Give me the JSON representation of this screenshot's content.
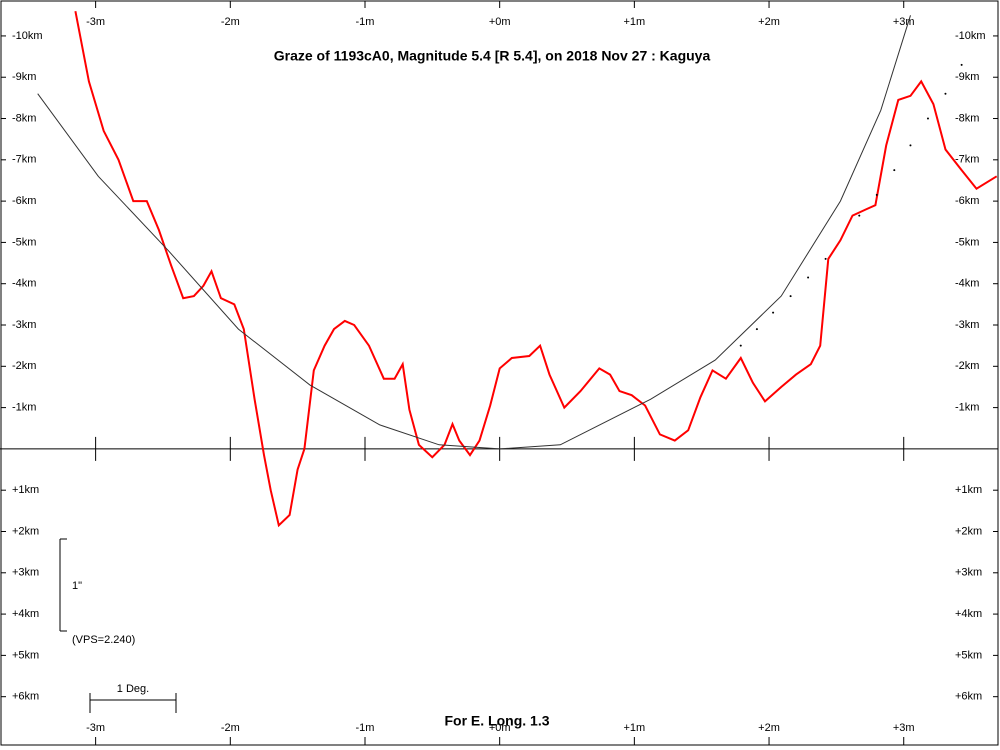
{
  "chart_data": {
    "type": "line",
    "title": "Graze of  1193cA0,  Magnitude 5.4 [R 5.4],  on 2018 Nov 27  :  Kaguya",
    "footer": "For E. Long. 1.3",
    "annotations": [
      "1\"",
      "(VPS=2.240)",
      "1 Deg."
    ],
    "xlim": [
      -3.71,
      3.7
    ],
    "ylim": [
      -10.87,
      7.17
    ],
    "xticks": [
      {
        "value": -3,
        "label": "-3m"
      },
      {
        "value": -2,
        "label": "-2m"
      },
      {
        "value": -1,
        "label": "-1m"
      },
      {
        "value": 0,
        "label": "+0m"
      },
      {
        "value": 1,
        "label": "+1m"
      },
      {
        "value": 2,
        "label": "+2m"
      },
      {
        "value": 3,
        "label": "+3m"
      }
    ],
    "yticks": [
      {
        "value": -10,
        "label": "-10km"
      },
      {
        "value": -9,
        "label": "-9km"
      },
      {
        "value": -8,
        "label": "-8km"
      },
      {
        "value": -7,
        "label": "-7km"
      },
      {
        "value": -6,
        "label": "-6km"
      },
      {
        "value": -5,
        "label": "-5km"
      },
      {
        "value": -4,
        "label": "-4km"
      },
      {
        "value": -3,
        "label": "-3km"
      },
      {
        "value": -2,
        "label": "-2km"
      },
      {
        "value": -1,
        "label": "-1km"
      },
      {
        "value": 1,
        "label": "+1km"
      },
      {
        "value": 2,
        "label": "+2km"
      },
      {
        "value": 3,
        "label": "+3km"
      },
      {
        "value": 4,
        "label": "+4km"
      },
      {
        "value": 5,
        "label": "+5km"
      },
      {
        "value": 6,
        "label": "+6km"
      }
    ],
    "series": [
      {
        "color": "#ff0000",
        "style": "solid",
        "x": [
          -3.15,
          -3.05,
          -2.94,
          -2.83,
          -2.72,
          -2.62,
          -2.53,
          -2.44,
          -2.35,
          -2.27,
          -2.2,
          -2.14,
          -2.07,
          -1.97,
          -1.9,
          -1.82,
          -1.75,
          -1.7,
          -1.64,
          -1.56,
          -1.5,
          -1.45,
          -1.38,
          -1.3,
          -1.23,
          -1.15,
          -1.08,
          -0.97,
          -0.86,
          -0.78,
          -0.72,
          -0.67,
          -0.6,
          -0.5,
          -0.41,
          -0.35,
          -0.3,
          -0.22,
          -0.15,
          -0.07,
          0,
          0.09,
          0.22,
          0.3,
          0.37,
          0.48,
          0.6,
          0.74,
          0.82,
          0.89,
          0.98,
          1.08,
          1.19,
          1.3,
          1.4,
          1.49,
          1.58,
          1.68,
          1.79,
          1.88,
          1.97,
          2.09,
          2.2,
          2.31,
          2.38,
          2.44,
          2.53,
          2.62,
          2.72,
          2.79,
          2.87,
          2.96,
          3.05,
          3.13,
          3.22,
          3.31,
          3.43,
          3.54,
          3.69
        ],
        "values": [
          -10.6,
          -8.9,
          -7.7,
          -7.0,
          -6.0,
          -6.0,
          -5.3,
          -4.45,
          -3.65,
          -3.7,
          -3.95,
          -4.3,
          -3.65,
          -3.5,
          -2.9,
          -1.2,
          0.15,
          1.0,
          1.85,
          1.6,
          0.5,
          0.0,
          -1.9,
          -2.5,
          -2.9,
          -3.1,
          -3.0,
          -2.5,
          -1.7,
          -1.7,
          -2.05,
          -0.95,
          -0.1,
          0.2,
          -0.1,
          -0.6,
          -0.2,
          0.15,
          -0.2,
          -1.05,
          -1.95,
          -2.2,
          -2.25,
          -2.5,
          -1.8,
          -1.0,
          -1.4,
          -1.95,
          -1.8,
          -1.4,
          -1.3,
          -1.05,
          -0.35,
          -0.2,
          -0.45,
          -1.25,
          -1.9,
          -1.7,
          -2.2,
          -1.6,
          -1.15,
          -1.5,
          -1.8,
          -2.05,
          -2.5,
          -4.6,
          -5.05,
          -5.65,
          -5.8,
          -5.9,
          -7.35,
          -8.45,
          -8.55,
          -8.9,
          -8.35,
          -7.25,
          -6.75,
          -6.3,
          -6.6
        ]
      },
      {
        "color": "#333333",
        "style": "solid",
        "x": [
          -3.43,
          -2.98,
          -2.46,
          -1.94,
          -1.41,
          -0.89,
          -0.45,
          0,
          0.45,
          1.12,
          1.6,
          2.09,
          2.53,
          2.83,
          3.05
        ],
        "values": [
          -8.6,
          -6.6,
          -4.8,
          -2.9,
          -1.55,
          -0.58,
          -0.1,
          0,
          -0.1,
          -1.2,
          -2.15,
          -3.7,
          -6.0,
          -8.2,
          -10.5
        ]
      },
      {
        "color": "#000000",
        "style": "dotted",
        "x": [
          1.79,
          1.91,
          2.03,
          2.16,
          2.29,
          2.42,
          2.67,
          2.8,
          2.93,
          3.05,
          3.18,
          3.31,
          3.43
        ],
        "values": [
          -2.5,
          -2.9,
          -3.3,
          -3.7,
          -4.15,
          -4.6,
          -5.65,
          -6.15,
          -6.75,
          -7.35,
          -8.0,
          -8.6,
          -9.3
        ]
      }
    ]
  }
}
